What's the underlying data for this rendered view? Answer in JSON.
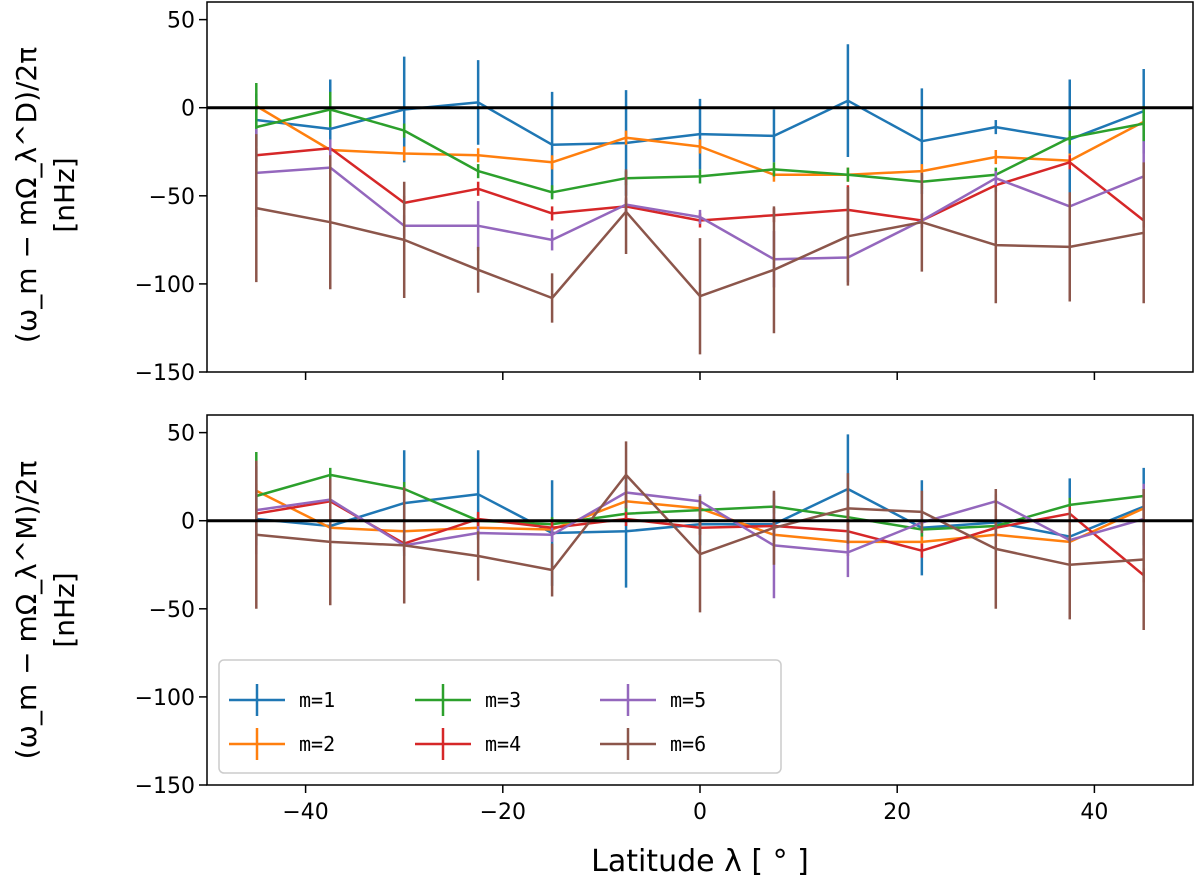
{
  "chart_data": [
    {
      "type": "line",
      "panel": "top",
      "ylabel_line1": "(ω_m − mΩ_λ^D)/2π",
      "ylabel_line2": "[nHz]",
      "xlim": [
        -50,
        50
      ],
      "ylim": [
        -150,
        60
      ],
      "x_ticks": [
        -40,
        -20,
        0,
        20,
        40
      ],
      "y_ticks": [
        50,
        0,
        -50,
        -100,
        -150
      ],
      "x_tick_labels_visible": false,
      "reference_line_y": 0,
      "x": [
        -45,
        -37.5,
        -30,
        -22.5,
        -15,
        -7.5,
        0,
        7.5,
        15,
        22.5,
        30,
        37.5,
        45
      ],
      "series": [
        {
          "name": "m=1",
          "color": "#1f77b4",
          "values": [
            -7,
            -12,
            -1,
            3,
            -21,
            -20,
            -15,
            -16,
            4,
            -19,
            -11,
            -18,
            -2
          ],
          "errors": [
            15,
            28,
            30,
            24,
            30,
            30,
            20,
            15,
            32,
            30,
            4,
            34,
            24
          ]
        },
        {
          "name": "m=2",
          "color": "#ff7f0e",
          "values": [
            1,
            -24,
            -26,
            -27,
            -31,
            -17,
            -22,
            -38,
            -38,
            -36,
            -28,
            -30,
            -8
          ],
          "errors": [
            4,
            4,
            4,
            4,
            4,
            4,
            4,
            4,
            4,
            4,
            4,
            4,
            4
          ]
        },
        {
          "name": "m=3",
          "color": "#2ca02c",
          "values": [
            -11,
            -1,
            -13,
            -36,
            -48,
            -40,
            -39,
            -35,
            -38,
            -42,
            -38,
            -17,
            -9
          ],
          "errors": [
            25,
            10,
            4,
            4,
            4,
            4,
            4,
            4,
            4,
            4,
            4,
            4,
            10
          ]
        },
        {
          "name": "m=4",
          "color": "#d62728",
          "values": [
            -27,
            -23,
            -54,
            -46,
            -60,
            -56,
            -64,
            -61,
            -58,
            -64,
            -44,
            -31,
            -64
          ],
          "errors": [
            4,
            4,
            4,
            4,
            4,
            4,
            4,
            4,
            14,
            4,
            4,
            4,
            4
          ]
        },
        {
          "name": "m=5",
          "color": "#9467bd",
          "values": [
            -37,
            -34,
            -67,
            -67,
            -75,
            -55,
            -62,
            -86,
            -85,
            -64,
            -40,
            -56,
            -39
          ],
          "errors": [
            25,
            16,
            6,
            14,
            6,
            4,
            4,
            16,
            14,
            4,
            4,
            4,
            20
          ]
        },
        {
          "name": "m=6",
          "color": "#8c564b",
          "values": [
            -57,
            -65,
            -75,
            -92,
            -108,
            -59,
            -107,
            -92,
            -73,
            -65,
            -78,
            -79,
            -71
          ],
          "errors": [
            42,
            38,
            33,
            13,
            14,
            24,
            33,
            36,
            28,
            28,
            33,
            31,
            40
          ]
        }
      ]
    },
    {
      "type": "line",
      "panel": "bottom",
      "ylabel_line1": "(ω_m − mΩ_λ^M)/2π",
      "ylabel_line2": "[nHz]",
      "xlabel": "Latitude λ [ ° ]",
      "xlim": [
        -50,
        50
      ],
      "ylim": [
        -150,
        60
      ],
      "x_ticks": [
        -40,
        -20,
        0,
        20,
        40
      ],
      "x_tick_labels": [
        "−40",
        "−20",
        "0",
        "20",
        "40"
      ],
      "y_ticks": [
        50,
        0,
        -50,
        -100,
        -150
      ],
      "reference_line_y": 0,
      "legend_location": "lower-left",
      "legend_columns": 3,
      "x": [
        -45,
        -37.5,
        -30,
        -22.5,
        -15,
        -7.5,
        0,
        7.5,
        15,
        22.5,
        30,
        37.5,
        45
      ],
      "series": [
        {
          "name": "m=1",
          "color": "#1f77b4",
          "values": [
            1,
            -3,
            10,
            15,
            -7,
            -6,
            -2,
            -2,
            18,
            -4,
            -1,
            -9,
            8
          ],
          "errors": [
            15,
            10,
            30,
            25,
            30,
            32,
            12,
            4,
            31,
            27,
            4,
            33,
            22
          ]
        },
        {
          "name": "m=2",
          "color": "#ff7f0e",
          "values": [
            17,
            -4,
            -6,
            -4,
            -5,
            11,
            7,
            -8,
            -12,
            -12,
            -8,
            -12,
            7
          ],
          "errors": [
            4,
            4,
            4,
            4,
            4,
            4,
            4,
            4,
            4,
            4,
            4,
            4,
            4
          ]
        },
        {
          "name": "m=3",
          "color": "#2ca02c",
          "values": [
            14,
            26,
            18,
            0,
            -2,
            4,
            6,
            8,
            2,
            -5,
            -3,
            9,
            14
          ],
          "errors": [
            25,
            4,
            4,
            4,
            4,
            4,
            4,
            4,
            4,
            4,
            4,
            4,
            4
          ]
        },
        {
          "name": "m=4",
          "color": "#d62728",
          "values": [
            4,
            11,
            -13,
            1,
            -4,
            1,
            -4,
            -3,
            -6,
            -17,
            -4,
            4,
            -31
          ],
          "errors": [
            4,
            4,
            4,
            4,
            4,
            4,
            4,
            4,
            14,
            4,
            4,
            4,
            4
          ]
        },
        {
          "name": "m=5",
          "color": "#9467bd",
          "values": [
            6,
            12,
            -14,
            -7,
            -8,
            16,
            11,
            -14,
            -18,
            -1,
            11,
            -11,
            1
          ],
          "errors": [
            25,
            4,
            4,
            4,
            4,
            4,
            4,
            30,
            14,
            4,
            4,
            4,
            20
          ]
        },
        {
          "name": "m=6",
          "color": "#8c564b",
          "values": [
            -8,
            -12,
            -14,
            -20,
            -28,
            26,
            -19,
            -4,
            7,
            5,
            -16,
            -25,
            -22
          ],
          "errors": [
            42,
            36,
            33,
            14,
            15,
            19,
            33,
            21,
            20,
            12,
            34,
            31,
            40
          ]
        }
      ]
    }
  ]
}
